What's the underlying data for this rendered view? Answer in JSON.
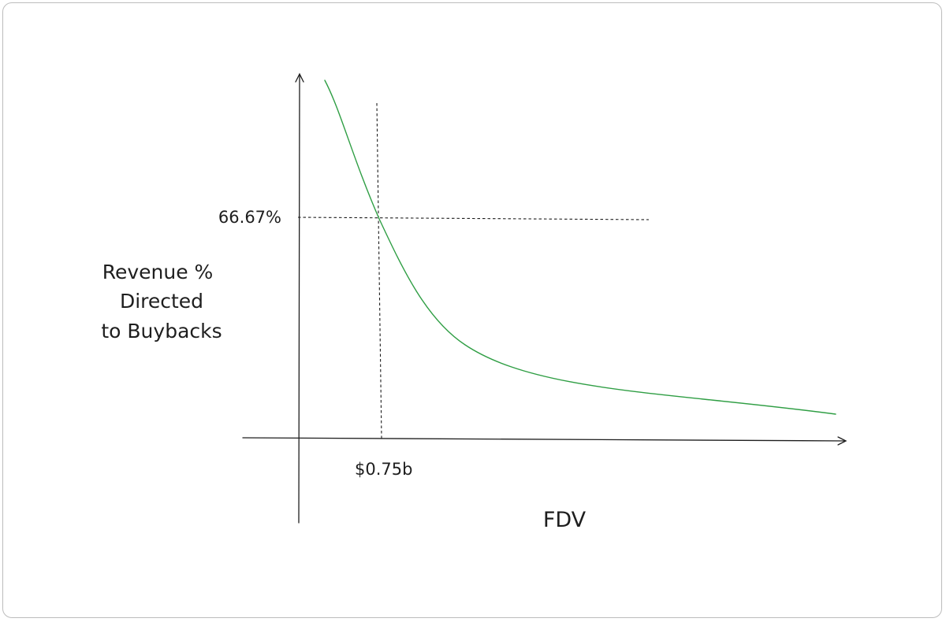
{
  "chart_data": {
    "type": "line",
    "xlabel": "FDV",
    "ylabel_lines": [
      "Revenue %",
      "Directed",
      "to Buybacks"
    ],
    "marker": {
      "x_label": "$0.75b",
      "y_label": "66.67%"
    },
    "series": [
      {
        "color": "#2f9e44"
      }
    ],
    "guide_style": "dashed",
    "axes_arrows": true,
    "grid": false
  }
}
